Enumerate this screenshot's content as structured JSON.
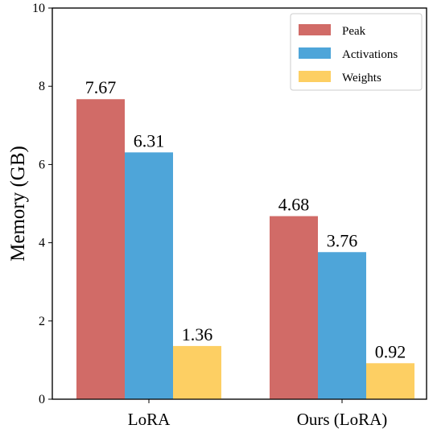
{
  "chart_data": {
    "type": "bar",
    "title": "",
    "xlabel": "",
    "ylabel": "Memory (GB)",
    "ylim": [
      0,
      10
    ],
    "yticks": [
      "0",
      "2",
      "4",
      "6",
      "8",
      "10"
    ],
    "categories": [
      "LoRA",
      "Ours (LoRA)"
    ],
    "series": [
      {
        "name": "Peak",
        "color": "#d16b67",
        "values": [
          7.67,
          4.68
        ],
        "labels": [
          "7.67",
          "4.68"
        ]
      },
      {
        "name": "Activations",
        "color": "#4ea5d9",
        "values": [
          6.31,
          3.76
        ],
        "labels": [
          "6.31",
          "3.76"
        ]
      },
      {
        "name": "Weights",
        "color": "#fdcf63",
        "values": [
          1.36,
          0.92
        ],
        "labels": [
          "1.36",
          "0.92"
        ]
      }
    ],
    "legend_position": "top-right",
    "grid": false
  }
}
